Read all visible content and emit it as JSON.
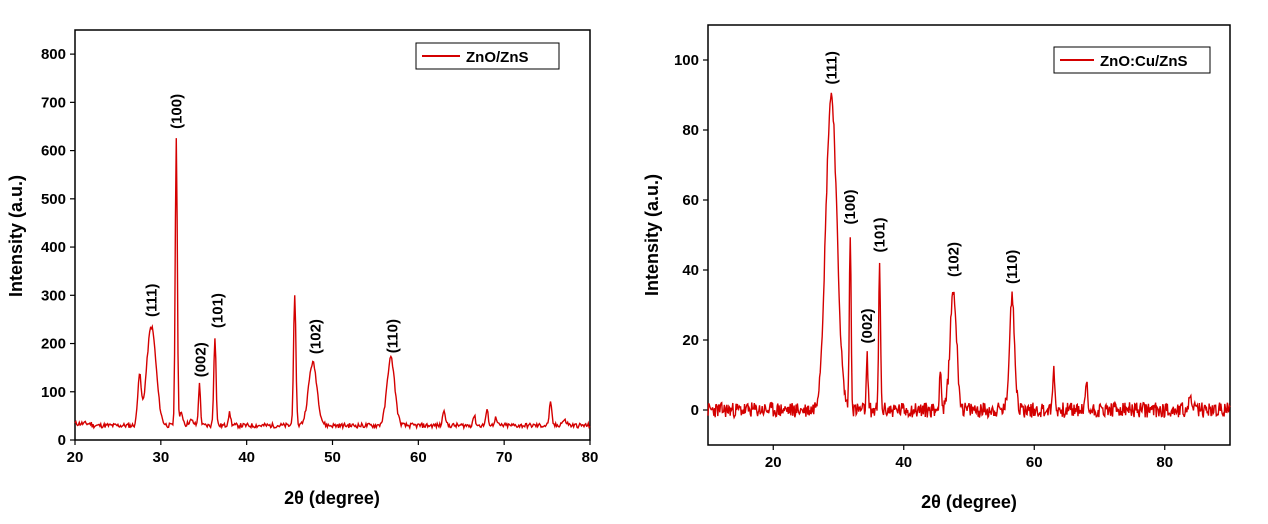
{
  "chart_data": [
    {
      "type": "line",
      "xlabel": "2θ (degree)",
      "ylabel": "Intensity (a.u.)",
      "xlim": [
        20,
        80
      ],
      "ylim": [
        0,
        850
      ],
      "xticks": [
        20,
        30,
        40,
        50,
        60,
        70,
        80
      ],
      "yticks": [
        0,
        100,
        200,
        300,
        400,
        500,
        600,
        700,
        800
      ],
      "legend_position": "top-right",
      "series": [
        {
          "name": "ZnO/ZnS",
          "color": "#d40000",
          "baseline": 30,
          "peaks": [
            {
              "x": 27.5,
              "height": 100,
              "width": 0.2
            },
            {
              "x": 28.9,
              "height": 205,
              "width": 0.55
            },
            {
              "x": 31.8,
              "height": 600,
              "width": 0.12
            },
            {
              "x": 32.4,
              "height": 25,
              "width": 0.2
            },
            {
              "x": 33.5,
              "height": 10,
              "width": 0.3
            },
            {
              "x": 34.5,
              "height": 85,
              "width": 0.12
            },
            {
              "x": 36.3,
              "height": 185,
              "width": 0.13
            },
            {
              "x": 38.0,
              "height": 25,
              "width": 0.15
            },
            {
              "x": 45.6,
              "height": 265,
              "width": 0.14
            },
            {
              "x": 47.7,
              "height": 130,
              "width": 0.5
            },
            {
              "x": 56.8,
              "height": 140,
              "width": 0.45
            },
            {
              "x": 63.0,
              "height": 35,
              "width": 0.15
            },
            {
              "x": 66.5,
              "height": 20,
              "width": 0.15
            },
            {
              "x": 68.0,
              "height": 30,
              "width": 0.15
            },
            {
              "x": 69.0,
              "height": 15,
              "width": 0.15
            },
            {
              "x": 75.4,
              "height": 45,
              "width": 0.15
            },
            {
              "x": 77.0,
              "height": 10,
              "width": 0.3
            }
          ]
        }
      ],
      "annotations": [
        {
          "text": "(111)",
          "x": 28.9,
          "y": 255
        },
        {
          "text": "(100)",
          "x": 31.8,
          "y": 645
        },
        {
          "text": "(002)",
          "x": 34.6,
          "y": 130
        },
        {
          "text": "(101)",
          "x": 36.6,
          "y": 232
        },
        {
          "text": "(102)",
          "x": 48.0,
          "y": 178
        },
        {
          "text": "(110)",
          "x": 57.0,
          "y": 180
        }
      ]
    },
    {
      "type": "line",
      "xlabel": "2θ (degree)",
      "ylabel": "Intensity (a.u.)",
      "xlim": [
        10,
        90
      ],
      "ylim": [
        -10,
        110
      ],
      "xticks": [
        20,
        40,
        60,
        80
      ],
      "yticks": [
        0,
        20,
        40,
        60,
        80,
        100
      ],
      "legend_position": "top-right",
      "series": [
        {
          "name": "ZnO:Cu/ZnS",
          "color": "#d40000",
          "baseline": 0,
          "peaks": [
            {
              "x": 28.9,
              "height": 90,
              "width": 0.85
            },
            {
              "x": 31.8,
              "height": 49,
              "width": 0.14
            },
            {
              "x": 34.4,
              "height": 15,
              "width": 0.13
            },
            {
              "x": 36.3,
              "height": 41,
              "width": 0.14
            },
            {
              "x": 45.6,
              "height": 12,
              "width": 0.15
            },
            {
              "x": 47.6,
              "height": 34,
              "width": 0.5
            },
            {
              "x": 56.6,
              "height": 32,
              "width": 0.4
            },
            {
              "x": 63.0,
              "height": 12,
              "width": 0.15
            },
            {
              "x": 68.0,
              "height": 8,
              "width": 0.15
            },
            {
              "x": 84.0,
              "height": 4,
              "width": 0.2
            }
          ]
        }
      ],
      "annotations": [
        {
          "text": "(111)",
          "x": 28.9,
          "y": 93
        },
        {
          "text": "(100)",
          "x": 31.8,
          "y": 53
        },
        {
          "text": "(002)",
          "x": 34.4,
          "y": 19
        },
        {
          "text": "(101)",
          "x": 36.3,
          "y": 45
        },
        {
          "text": "(102)",
          "x": 47.6,
          "y": 38
        },
        {
          "text": "(110)",
          "x": 56.6,
          "y": 36
        }
      ]
    }
  ]
}
